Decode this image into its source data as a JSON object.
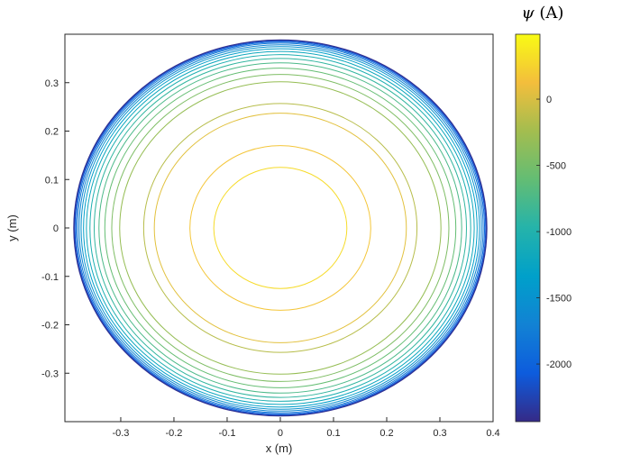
{
  "figure": {
    "background": "#ffffff",
    "axis_color": "#262626",
    "contour_stroke_width": 1
  },
  "chart_data": {
    "type": "contour",
    "title": "",
    "xlabel": "x (m)",
    "ylabel": "y (m)",
    "xlim": [
      -0.405,
      0.4
    ],
    "ylim": [
      -0.4,
      0.4
    ],
    "grid": false,
    "xticks": [
      -0.3,
      -0.2,
      -0.1,
      0,
      0.1,
      0.2,
      0.3,
      0.4
    ],
    "xtick_labels": [
      "-0.3",
      "-0.2",
      "-0.1",
      "0",
      "0.1",
      "0.2",
      "0.3",
      "0.4"
    ],
    "yticks": [
      -0.3,
      -0.2,
      -0.1,
      0,
      0.1,
      0.2,
      0.3
    ],
    "ytick_labels": [
      "-0.3",
      "-0.2",
      "-0.1",
      "0",
      "0.1",
      "0.2",
      "0.3"
    ],
    "center": [
      0,
      0
    ],
    "contours": [
      {
        "level": 300,
        "radius": 0.125,
        "color": "#f6db29"
      },
      {
        "level": 150,
        "radius": 0.17,
        "color": "#f4c63a"
      },
      {
        "level": 0,
        "radius": 0.237,
        "color": "#e2c13e"
      },
      {
        "level": -150,
        "radius": 0.257,
        "color": "#b7bd4a"
      },
      {
        "level": -300,
        "radius": 0.302,
        "color": "#95bd53"
      },
      {
        "level": -450,
        "radius": 0.317,
        "color": "#7ebd64"
      },
      {
        "level": -600,
        "radius": 0.33,
        "color": "#64bd73"
      },
      {
        "level": -750,
        "radius": 0.341,
        "color": "#4bb989"
      },
      {
        "level": -900,
        "radius": 0.35,
        "color": "#31b59f"
      },
      {
        "level": -1050,
        "radius": 0.358,
        "color": "#1dafb1"
      },
      {
        "level": -1200,
        "radius": 0.3645,
        "color": "#0ea7be"
      },
      {
        "level": -1350,
        "radius": 0.37,
        "color": "#029fca"
      },
      {
        "level": -1500,
        "radius": 0.3745,
        "color": "#0893ce"
      },
      {
        "level": -1650,
        "radius": 0.3783,
        "color": "#1086d3"
      },
      {
        "level": -1800,
        "radius": 0.3815,
        "color": "#1178d6"
      },
      {
        "level": -1950,
        "radius": 0.384,
        "color": "#0f69da"
      },
      {
        "level": -2100,
        "radius": 0.386,
        "color": "#1057d7"
      },
      {
        "level": -2250,
        "radius": 0.3875,
        "color": "#2144b3"
      },
      {
        "level": -2400,
        "radius": 0.3885,
        "color": "#312f90"
      }
    ],
    "colorbar": {
      "label": "ψ (A)",
      "label_symbol": "ψ",
      "label_rest": " (A)",
      "max": 490,
      "min": -2435,
      "ticks": [
        0,
        -500,
        -1000,
        -1500,
        -2000
      ],
      "tick_labels": [
        "0",
        "-500",
        "-1000",
        "-1500",
        "-2000"
      ],
      "colormap": [
        {
          "pos": 0.0,
          "color": "#352a87"
        },
        {
          "pos": 0.125,
          "color": "#0d5cdd"
        },
        {
          "pos": 0.25,
          "color": "#1282d4"
        },
        {
          "pos": 0.375,
          "color": "#00a0ca"
        },
        {
          "pos": 0.5,
          "color": "#25b3aa"
        },
        {
          "pos": 0.625,
          "color": "#63bd74"
        },
        {
          "pos": 0.75,
          "color": "#a3bd4f"
        },
        {
          "pos": 0.875,
          "color": "#f3be3c"
        },
        {
          "pos": 1.0,
          "color": "#f9fb14"
        }
      ]
    }
  }
}
